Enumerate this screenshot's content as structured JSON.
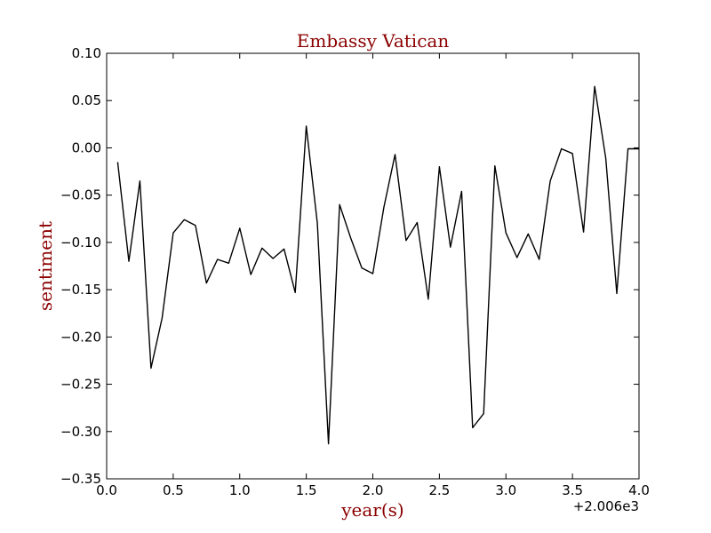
{
  "chart_data": {
    "type": "line",
    "title": "Embassy Vatican",
    "xlabel": "year(s)",
    "ylabel": "sentiment",
    "x_offset_label": "+2.006e3",
    "xlim": [
      0.0,
      4.0
    ],
    "ylim": [
      -0.35,
      0.1
    ],
    "x_ticks": [
      "0.0",
      "0.5",
      "1.0",
      "1.5",
      "2.0",
      "2.5",
      "3.0",
      "3.5",
      "4.0"
    ],
    "y_ticks": [
      "0.10",
      "0.05",
      "0.00",
      "−0.05",
      "−0.10",
      "−0.15",
      "−0.20",
      "−0.25",
      "−0.30",
      "−0.35"
    ],
    "label_color": "#8b0000",
    "line_color": "#000000",
    "grid": false,
    "series": [
      {
        "x": [
          0.083,
          0.167,
          0.25,
          0.333,
          0.417,
          0.5,
          0.583,
          0.667,
          0.75,
          0.833,
          0.917,
          1.0,
          1.083,
          1.167,
          1.25,
          1.333,
          1.417,
          1.5,
          1.583,
          1.667,
          1.75,
          1.833,
          1.917,
          2.0,
          2.083,
          2.167,
          2.25,
          2.333,
          2.417,
          2.5,
          2.583,
          2.667,
          2.75,
          2.833,
          2.917,
          3.0,
          3.083,
          3.167,
          3.25,
          3.333,
          3.417,
          3.5,
          3.583,
          3.667,
          3.75,
          3.833,
          3.917,
          4.0
        ],
        "y": [
          -0.015,
          -0.12,
          -0.035,
          -0.233,
          -0.18,
          -0.09,
          -0.076,
          -0.082,
          -0.143,
          -0.118,
          -0.122,
          -0.085,
          -0.134,
          -0.106,
          -0.117,
          -0.107,
          -0.153,
          0.023,
          -0.08,
          -0.313,
          -0.06,
          -0.095,
          -0.127,
          -0.133,
          -0.063,
          -0.007,
          -0.098,
          -0.079,
          -0.16,
          -0.02,
          -0.105,
          -0.046,
          -0.296,
          -0.281,
          -0.019,
          -0.09,
          -0.116,
          -0.091,
          -0.118,
          -0.035,
          -0.001,
          -0.006,
          -0.089,
          0.065,
          -0.011,
          -0.154,
          -0.001,
          -0.001
        ]
      }
    ]
  }
}
